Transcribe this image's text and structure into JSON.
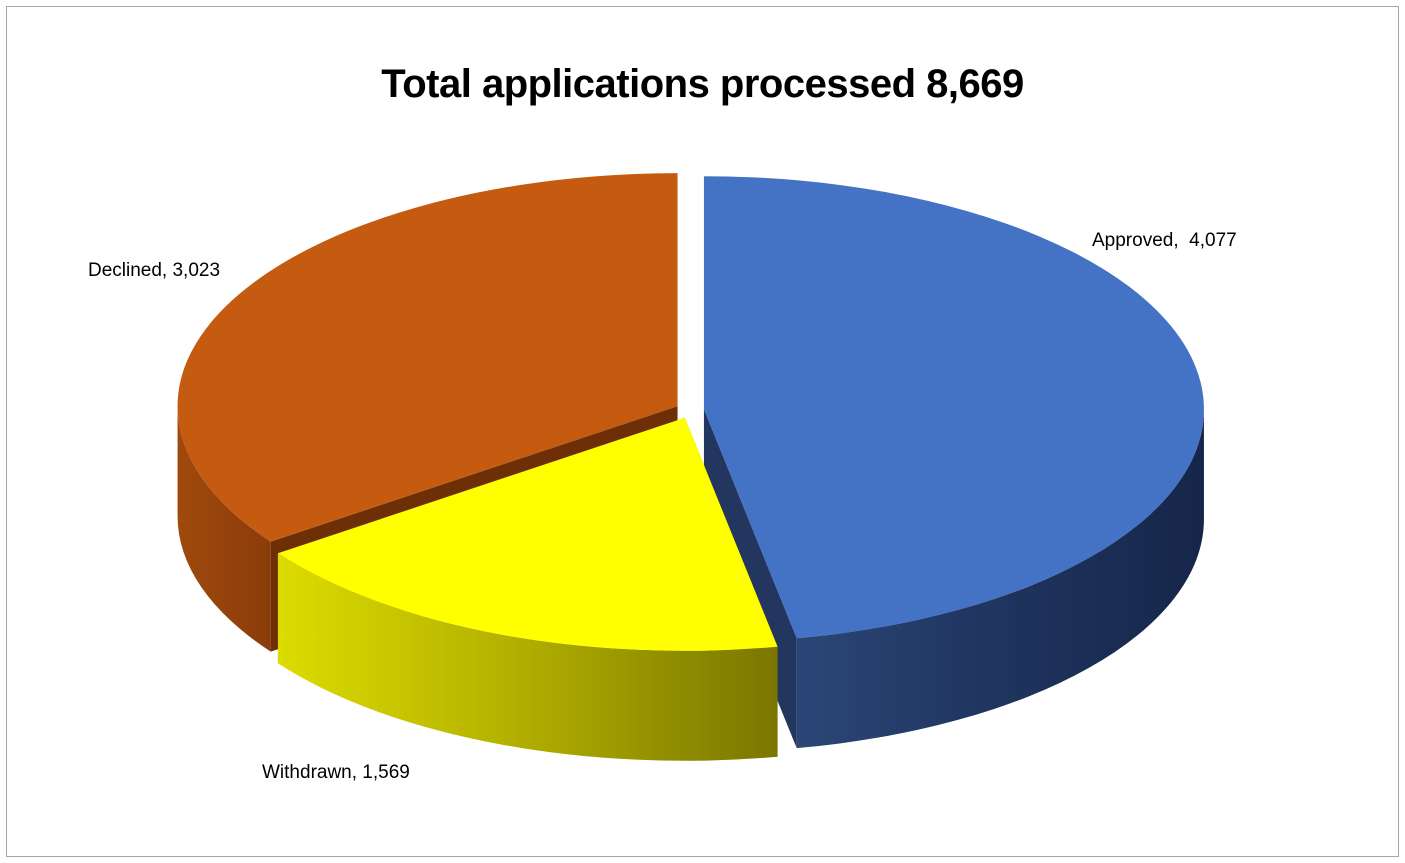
{
  "chart_data": {
    "type": "pie",
    "title": "Total applications processed 8,669",
    "categories": [
      "Approved",
      "Withdrawn",
      "Declined"
    ],
    "values": [
      4077,
      1569,
      3023
    ],
    "data_labels": [
      "Approved,  4,077",
      "Withdrawn, 1,569",
      "Declined, 3,023"
    ],
    "colors": {
      "Approved": "#4472c4",
      "Withdrawn": "#ffff00",
      "Declined": "#c55a11"
    },
    "style": "3d-exploded",
    "legend": "none"
  }
}
